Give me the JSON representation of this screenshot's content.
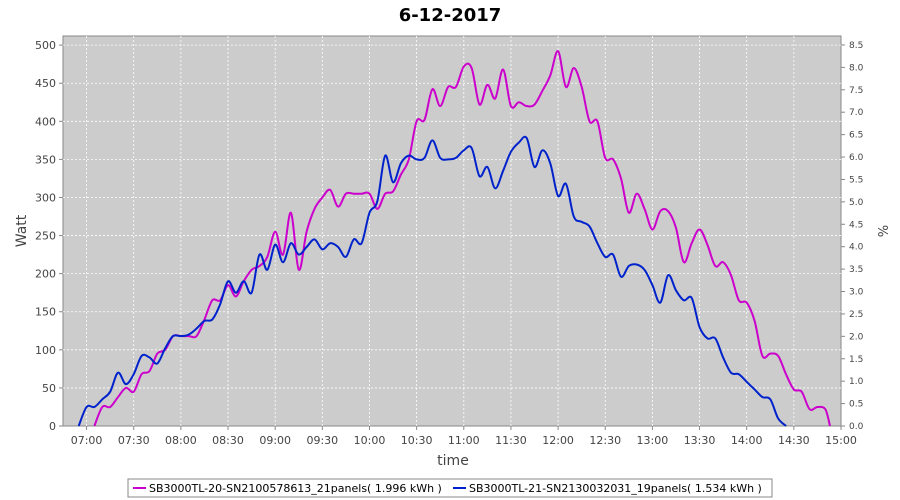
{
  "chart_data": {
    "type": "line",
    "title": "6-12-2017",
    "xlabel": "time",
    "ylabel": "Watt",
    "y2label": "%",
    "xlim": [
      "06:45",
      "15:00"
    ],
    "ylim": [
      0,
      512
    ],
    "y2lim": [
      0,
      8.7
    ],
    "x_ticks": [
      "07:00",
      "07:30",
      "08:00",
      "08:30",
      "09:00",
      "09:30",
      "10:00",
      "10:30",
      "11:00",
      "11:30",
      "12:00",
      "12:30",
      "13:00",
      "13:30",
      "14:00",
      "14:30",
      "15:00"
    ],
    "y_ticks": [
      0,
      50,
      100,
      150,
      200,
      250,
      300,
      350,
      400,
      450,
      500
    ],
    "y2_ticks": [
      "0.0",
      "0.5",
      "1.0",
      "1.5",
      "2.0",
      "2.5",
      "3.0",
      "3.5",
      "4.0",
      "4.5",
      "5.0",
      "5.5",
      "6.0",
      "6.5",
      "7.0",
      "7.5",
      "8.0",
      "8.5"
    ],
    "grid": true,
    "legend_position": "bottom",
    "colors": {
      "plot_bg": "#cccccc",
      "grid": "#ffffff"
    },
    "series": [
      {
        "name": "SB3000TL-20-SN2100578613_21panels( 1.996 kWh )",
        "color": "#cc00cc",
        "points": [
          [
            "07:05",
            0
          ],
          [
            "07:10",
            25
          ],
          [
            "07:15",
            25
          ],
          [
            "07:20",
            38
          ],
          [
            "07:25",
            50
          ],
          [
            "07:30",
            45
          ],
          [
            "07:35",
            68
          ],
          [
            "07:40",
            72
          ],
          [
            "07:45",
            95
          ],
          [
            "07:50",
            100
          ],
          [
            "07:55",
            118
          ],
          [
            "08:00",
            118
          ],
          [
            "08:05",
            118
          ],
          [
            "08:10",
            118
          ],
          [
            "08:15",
            140
          ],
          [
            "08:20",
            165
          ],
          [
            "08:25",
            165
          ],
          [
            "08:30",
            185
          ],
          [
            "08:35",
            170
          ],
          [
            "08:40",
            190
          ],
          [
            "08:45",
            205
          ],
          [
            "08:50",
            210
          ],
          [
            "08:55",
            222
          ],
          [
            "09:00",
            255
          ],
          [
            "09:05",
            225
          ],
          [
            "09:10",
            280
          ],
          [
            "09:15",
            205
          ],
          [
            "09:20",
            255
          ],
          [
            "09:25",
            285
          ],
          [
            "09:30",
            300
          ],
          [
            "09:35",
            310
          ],
          [
            "09:40",
            288
          ],
          [
            "09:45",
            305
          ],
          [
            "09:50",
            305
          ],
          [
            "09:55",
            305
          ],
          [
            "10:00",
            305
          ],
          [
            "10:05",
            285
          ],
          [
            "10:10",
            305
          ],
          [
            "10:15",
            308
          ],
          [
            "10:20",
            330
          ],
          [
            "10:25",
            350
          ],
          [
            "10:30",
            400
          ],
          [
            "10:35",
            402
          ],
          [
            "10:40",
            442
          ],
          [
            "10:45",
            420
          ],
          [
            "10:50",
            445
          ],
          [
            "10:55",
            445
          ],
          [
            "11:00",
            472
          ],
          [
            "11:05",
            470
          ],
          [
            "11:10",
            422
          ],
          [
            "11:15",
            448
          ],
          [
            "11:20",
            430
          ],
          [
            "11:25",
            468
          ],
          [
            "11:30",
            420
          ],
          [
            "11:35",
            425
          ],
          [
            "11:40",
            420
          ],
          [
            "11:45",
            422
          ],
          [
            "11:50",
            440
          ],
          [
            "11:55",
            460
          ],
          [
            "12:00",
            492
          ],
          [
            "12:05",
            445
          ],
          [
            "12:10",
            470
          ],
          [
            "12:15",
            445
          ],
          [
            "12:20",
            400
          ],
          [
            "12:25",
            400
          ],
          [
            "12:30",
            352
          ],
          [
            "12:35",
            350
          ],
          [
            "12:40",
            325
          ],
          [
            "12:45",
            280
          ],
          [
            "12:50",
            305
          ],
          [
            "12:55",
            285
          ],
          [
            "13:00",
            258
          ],
          [
            "13:05",
            282
          ],
          [
            "13:10",
            282
          ],
          [
            "13:15",
            260
          ],
          [
            "13:20",
            215
          ],
          [
            "13:25",
            240
          ],
          [
            "13:30",
            258
          ],
          [
            "13:35",
            238
          ],
          [
            "13:40",
            210
          ],
          [
            "13:45",
            215
          ],
          [
            "13:50",
            198
          ],
          [
            "13:55",
            165
          ],
          [
            "14:00",
            162
          ],
          [
            "14:05",
            138
          ],
          [
            "14:10",
            92
          ],
          [
            "14:15",
            95
          ],
          [
            "14:20",
            92
          ],
          [
            "14:25",
            68
          ],
          [
            "14:30",
            48
          ],
          [
            "14:35",
            45
          ],
          [
            "14:40",
            22
          ],
          [
            "14:45",
            25
          ],
          [
            "14:50",
            22
          ],
          [
            "14:53",
            0
          ]
        ]
      },
      {
        "name": "SB3000TL-21-SN2130032031_19panels( 1.534 kWh )",
        "color": "#0022cc",
        "points": [
          [
            "06:55",
            0
          ],
          [
            "07:00",
            25
          ],
          [
            "07:05",
            25
          ],
          [
            "07:10",
            35
          ],
          [
            "07:15",
            45
          ],
          [
            "07:20",
            70
          ],
          [
            "07:25",
            55
          ],
          [
            "07:30",
            68
          ],
          [
            "07:35",
            92
          ],
          [
            "07:40",
            90
          ],
          [
            "07:45",
            82
          ],
          [
            "07:50",
            102
          ],
          [
            "07:55",
            118
          ],
          [
            "08:00",
            118
          ],
          [
            "08:05",
            120
          ],
          [
            "08:10",
            128
          ],
          [
            "08:15",
            138
          ],
          [
            "08:20",
            140
          ],
          [
            "08:25",
            160
          ],
          [
            "08:30",
            190
          ],
          [
            "08:35",
            175
          ],
          [
            "08:40",
            190
          ],
          [
            "08:45",
            175
          ],
          [
            "08:50",
            225
          ],
          [
            "08:55",
            205
          ],
          [
            "09:00",
            238
          ],
          [
            "09:05",
            215
          ],
          [
            "09:10",
            240
          ],
          [
            "09:15",
            225
          ],
          [
            "09:20",
            235
          ],
          [
            "09:25",
            245
          ],
          [
            "09:30",
            232
          ],
          [
            "09:35",
            240
          ],
          [
            "09:40",
            235
          ],
          [
            "09:45",
            222
          ],
          [
            "09:50",
            245
          ],
          [
            "09:55",
            240
          ],
          [
            "10:00",
            280
          ],
          [
            "10:05",
            295
          ],
          [
            "10:10",
            355
          ],
          [
            "10:15",
            320
          ],
          [
            "10:20",
            345
          ],
          [
            "10:25",
            355
          ],
          [
            "10:30",
            350
          ],
          [
            "10:35",
            352
          ],
          [
            "10:40",
            375
          ],
          [
            "10:45",
            352
          ],
          [
            "10:50",
            350
          ],
          [
            "10:55",
            352
          ],
          [
            "11:00",
            362
          ],
          [
            "11:05",
            365
          ],
          [
            "11:10",
            328
          ],
          [
            "11:15",
            340
          ],
          [
            "11:20",
            312
          ],
          [
            "11:25",
            335
          ],
          [
            "11:30",
            360
          ],
          [
            "11:35",
            372
          ],
          [
            "11:40",
            378
          ],
          [
            "11:45",
            340
          ],
          [
            "11:50",
            362
          ],
          [
            "11:55",
            345
          ],
          [
            "12:00",
            302
          ],
          [
            "12:05",
            318
          ],
          [
            "12:10",
            275
          ],
          [
            "12:15",
            268
          ],
          [
            "12:20",
            262
          ],
          [
            "12:25",
            240
          ],
          [
            "12:30",
            222
          ],
          [
            "12:35",
            225
          ],
          [
            "12:40",
            196
          ],
          [
            "12:45",
            210
          ],
          [
            "12:50",
            212
          ],
          [
            "12:55",
            205
          ],
          [
            "13:00",
            185
          ],
          [
            "13:05",
            162
          ],
          [
            "13:10",
            198
          ],
          [
            "13:15",
            178
          ],
          [
            "13:20",
            165
          ],
          [
            "13:25",
            168
          ],
          [
            "13:30",
            130
          ],
          [
            "13:35",
            115
          ],
          [
            "13:40",
            115
          ],
          [
            "13:45",
            90
          ],
          [
            "13:50",
            70
          ],
          [
            "13:55",
            68
          ],
          [
            "14:00",
            58
          ],
          [
            "14:05",
            48
          ],
          [
            "14:10",
            38
          ],
          [
            "14:15",
            35
          ],
          [
            "14:20",
            10
          ],
          [
            "14:25",
            0
          ]
        ]
      }
    ]
  }
}
